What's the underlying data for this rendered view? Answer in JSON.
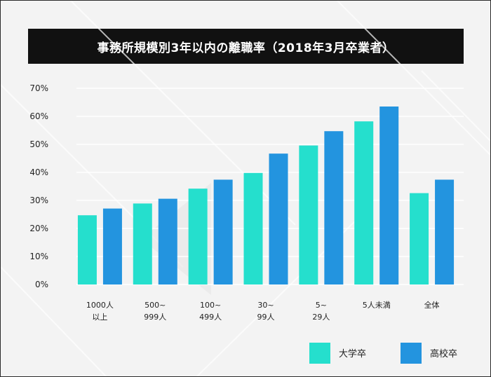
{
  "title": "事務所規模別3年以内の離職率（2018年3月卒業者）",
  "colors": {
    "background": "#f3f3f3",
    "title_bar": "#111111",
    "series_1": "#25dfcd",
    "series_2": "#2394df"
  },
  "chart_data": {
    "type": "bar",
    "title": "事務所規模別3年以内の離職率（2018年3月卒業者）",
    "categories": [
      [
        "1000人",
        "以上"
      ],
      [
        "500~",
        "999人"
      ],
      [
        "100~",
        "499人"
      ],
      [
        "30~",
        "99人"
      ],
      [
        "5~",
        "29人"
      ],
      [
        "5人未満"
      ],
      [
        "全体"
      ]
    ],
    "series": [
      {
        "name": "大学卒",
        "color": "#25dfcd",
        "values": [
          24.7,
          28.9,
          34.2,
          39.8,
          49.6,
          58.2,
          32.6
        ]
      },
      {
        "name": "高校卒",
        "color": "#2394df",
        "values": [
          27.1,
          30.6,
          37.4,
          46.7,
          54.7,
          63.5,
          37.4
        ]
      }
    ],
    "yticks": [
      "0%",
      "10%",
      "20%",
      "30%",
      "40%",
      "50%",
      "60%",
      "70%"
    ],
    "ylim": [
      0,
      70
    ],
    "grid": true,
    "legend_position": "bottom-right",
    "xlabel": "",
    "ylabel": ""
  }
}
